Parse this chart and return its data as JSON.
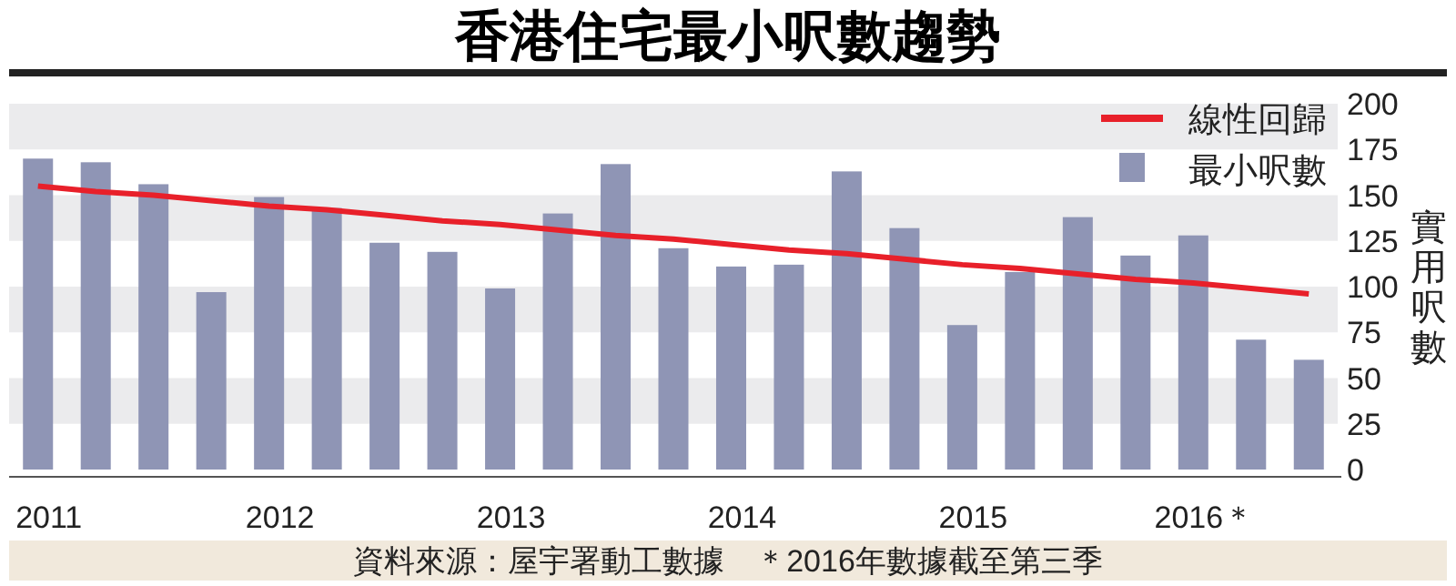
{
  "chart_data": {
    "type": "bar",
    "title": "香港住宅最小呎數趨勢",
    "ylabel": "實用呎數",
    "categories": [
      "2011",
      null,
      null,
      null,
      "2012",
      null,
      null,
      null,
      "2013",
      null,
      null,
      null,
      "2014",
      null,
      null,
      null,
      "2015",
      null,
      null,
      null,
      "2016＊",
      null,
      null
    ],
    "series": [
      {
        "name": "最小呎數",
        "color": "#8f95b5",
        "values": [
          170,
          168,
          156,
          97,
          149,
          143,
          124,
          119,
          99,
          140,
          167,
          121,
          111,
          112,
          163,
          132,
          79,
          108,
          138,
          117,
          128,
          71,
          60
        ]
      },
      {
        "name": "線性回歸",
        "type": "line",
        "color": "#e8202a",
        "values": [
          155,
          152,
          150,
          147,
          144,
          142,
          139,
          136,
          134,
          131,
          128,
          126,
          123,
          120,
          118,
          115,
          112,
          110,
          107,
          104,
          102,
          99,
          96
        ]
      }
    ],
    "ylim": [
      0,
      200
    ],
    "yticks": [
      0,
      25,
      50,
      75,
      100,
      125,
      150,
      175,
      200
    ],
    "bands": [
      {
        "axis": "y",
        "from": 25,
        "to": 50,
        "color": "#ebebed"
      },
      {
        "axis": "y",
        "from": 75,
        "to": 100,
        "color": "#ebebed"
      },
      {
        "axis": "y",
        "from": 125,
        "to": 150,
        "color": "#ebebed"
      },
      {
        "axis": "y",
        "from": 175,
        "to": 200,
        "color": "#ebebed"
      }
    ],
    "legend": "top right",
    "line_style": "solid",
    "marker": "none",
    "annotations": [
      "資料來源：屋宇署動工數據　＊2016年數據截至第三季"
    ]
  }
}
